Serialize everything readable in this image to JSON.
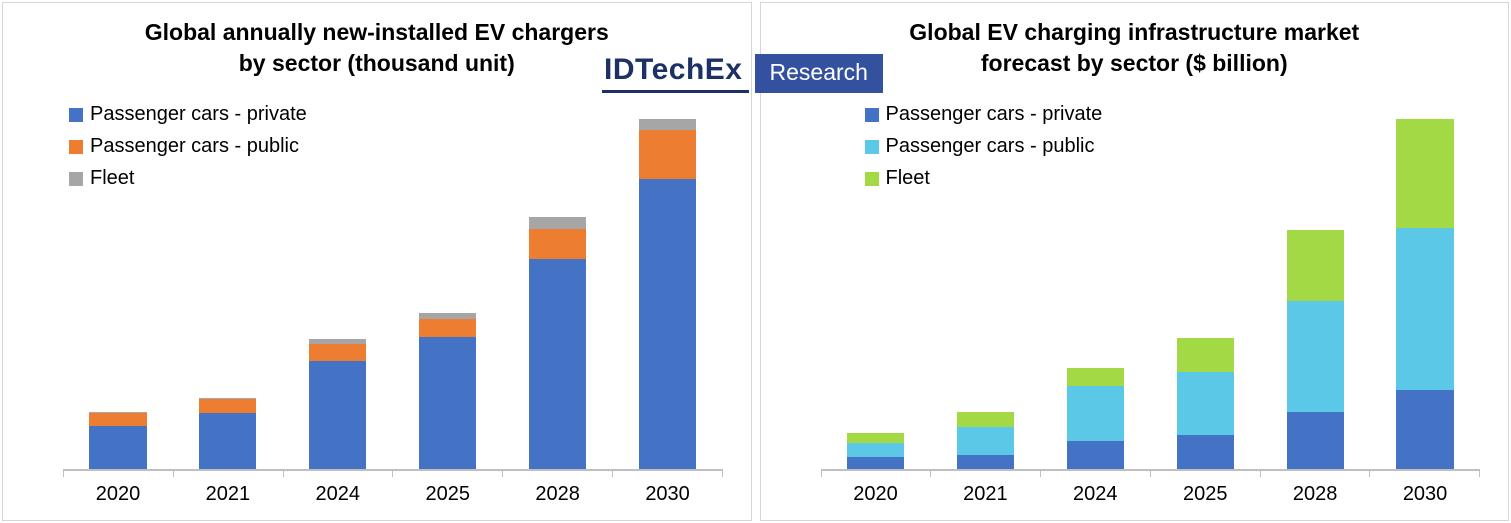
{
  "logo": {
    "brand": "IDTechEx",
    "sub": "Research",
    "brand_color": "#1d3166",
    "box_color": "#33519e"
  },
  "chart_data": [
    {
      "type": "bar",
      "stacked": true,
      "title": "Global annually new-installed EV chargers\nby sector (thousand unit)",
      "xlabel": "",
      "ylabel": "thousand unit",
      "legend_position": "top-left",
      "grid": false,
      "axis_color": "#bfbfbf",
      "categories": [
        "2020",
        "2021",
        "2024",
        "2025",
        "2028",
        "2030"
      ],
      "series": [
        {
          "name": "Passenger cars - private",
          "color": "#4472c4",
          "values": [
            430,
            560,
            1080,
            1320,
            2110,
            2910
          ]
        },
        {
          "name": "Passenger cars - public",
          "color": "#ed7d31",
          "values": [
            130,
            140,
            170,
            190,
            300,
            490
          ]
        },
        {
          "name": "Fleet",
          "color": "#a6a6a6",
          "values": [
            10,
            15,
            55,
            55,
            120,
            110
          ]
        }
      ]
    },
    {
      "type": "bar",
      "stacked": true,
      "title": "Global EV charging infrastructure market\nforecast by sector ($ billion)",
      "xlabel": "",
      "ylabel": "$ billion",
      "legend_position": "top-left",
      "grid": false,
      "axis_color": "#bfbfbf",
      "categories": [
        "2020",
        "2021",
        "2024",
        "2025",
        "2028",
        "2030"
      ],
      "series": [
        {
          "name": "Passenger cars - private",
          "color": "#4472c4",
          "values": [
            6,
            7,
            14,
            17,
            28,
            39
          ]
        },
        {
          "name": "Passenger cars - public",
          "color": "#5bc8e8",
          "values": [
            7,
            14,
            27,
            31,
            55,
            80
          ]
        },
        {
          "name": "Fleet",
          "color": "#a3d944",
          "values": [
            5,
            7,
            9,
            17,
            35,
            54
          ]
        }
      ]
    }
  ]
}
